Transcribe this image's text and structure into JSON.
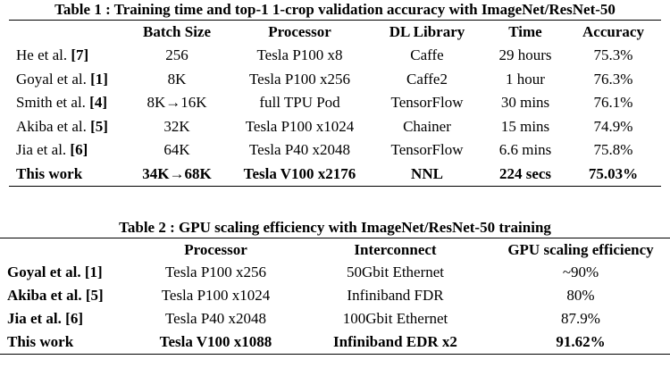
{
  "table1": {
    "caption": "Table 1 : Training time and top-1 1-crop validation accuracy with ImageNet/ResNet-50",
    "headers": [
      "",
      "Batch Size",
      "Processor",
      "DL Library",
      "Time",
      "Accuracy"
    ],
    "rows": [
      {
        "name": "He et al. ",
        "ref": "[7]",
        "batch": "256",
        "processor": "Tesla P100 x8",
        "library": "Caffe",
        "time": "29 hours",
        "accuracy": "75.3%"
      },
      {
        "name": "Goyal et al. ",
        "ref": "[1]",
        "batch": "8K",
        "processor": "Tesla P100 x256",
        "library": "Caffe2",
        "time": "1 hour",
        "accuracy": "76.3%"
      },
      {
        "name": "Smith et al. ",
        "ref": "[4]",
        "batch": "8K→16K",
        "processor": "full TPU Pod",
        "library": "TensorFlow",
        "time": "30 mins",
        "accuracy": "76.1%"
      },
      {
        "name": "Akiba et al. ",
        "ref": "[5]",
        "batch": "32K",
        "processor": "Tesla P100 x1024",
        "library": "Chainer",
        "time": "15 mins",
        "accuracy": "74.9%"
      },
      {
        "name": "Jia et al. ",
        "ref": "[6]",
        "batch": "64K",
        "processor": "Tesla P40 x2048",
        "library": "TensorFlow",
        "time": "6.6 mins",
        "accuracy": "75.8%"
      },
      {
        "name": "This work",
        "ref": "",
        "batch": "34K→68K",
        "processor": "Tesla V100 x2176",
        "library": "NNL",
        "time": "224 secs",
        "accuracy": "75.03%"
      }
    ]
  },
  "table2": {
    "caption": "Table 2 : GPU scaling efficiency with ImageNet/ResNet-50 training",
    "headers": [
      "",
      "Processor",
      "Interconnect",
      "GPU scaling efficiency"
    ],
    "rows": [
      {
        "name": "Goyal et al. ",
        "ref": "[1]",
        "processor": "Tesla P100 x256",
        "interconnect": "50Gbit Ethernet",
        "efficiency": "~90%"
      },
      {
        "name": "Akiba et al. ",
        "ref": "[5]",
        "processor": "Tesla P100 x1024",
        "interconnect": "Infiniband FDR",
        "efficiency": "80%"
      },
      {
        "name": "Jia et al. ",
        "ref": "[6]",
        "processor": "Tesla P40 x2048",
        "interconnect": "100Gbit Ethernet",
        "efficiency": "87.9%"
      },
      {
        "name": "This work",
        "ref": "",
        "processor": "Tesla V100 x1088",
        "interconnect": "Infiniband EDR x2",
        "efficiency": "91.62%"
      }
    ]
  }
}
